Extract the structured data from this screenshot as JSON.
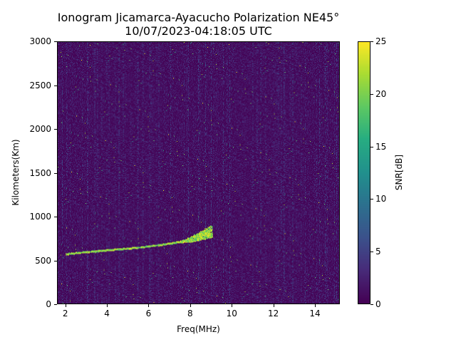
{
  "chart_data": {
    "type": "heatmap",
    "title": "Ionogram Jicamarca-Ayacucho Polarization NE45°",
    "subtitle": "10/07/2023-04:18:05 UTC",
    "xlabel": "Freq(MHz)",
    "ylabel": "Kilometers(Km)",
    "xlim": [
      1.6,
      15.2
    ],
    "ylim": [
      0,
      3000
    ],
    "x_ticks": [
      2,
      4,
      6,
      8,
      10,
      12,
      14
    ],
    "y_ticks": [
      0,
      500,
      1000,
      1500,
      2000,
      2500,
      3000
    ],
    "colorbar": {
      "label": "SNR[dB]",
      "range": [
        0,
        25
      ],
      "ticks": [
        0,
        5,
        10,
        15,
        20,
        25
      ],
      "colormap": "viridis"
    },
    "traces": [
      {
        "points": [
          [
            2.0,
            570
          ],
          [
            2.5,
            585
          ],
          [
            3.0,
            595
          ],
          [
            3.5,
            605
          ],
          [
            4.0,
            615
          ],
          [
            4.5,
            625
          ],
          [
            5.0,
            635
          ],
          [
            5.5,
            645
          ],
          [
            6.0,
            660
          ],
          [
            6.5,
            675
          ],
          [
            7.0,
            690
          ],
          [
            7.5,
            710
          ],
          [
            8.0,
            735
          ],
          [
            8.5,
            780
          ],
          [
            9.0,
            830
          ]
        ],
        "snr": 25
      }
    ],
    "grid": false
  }
}
